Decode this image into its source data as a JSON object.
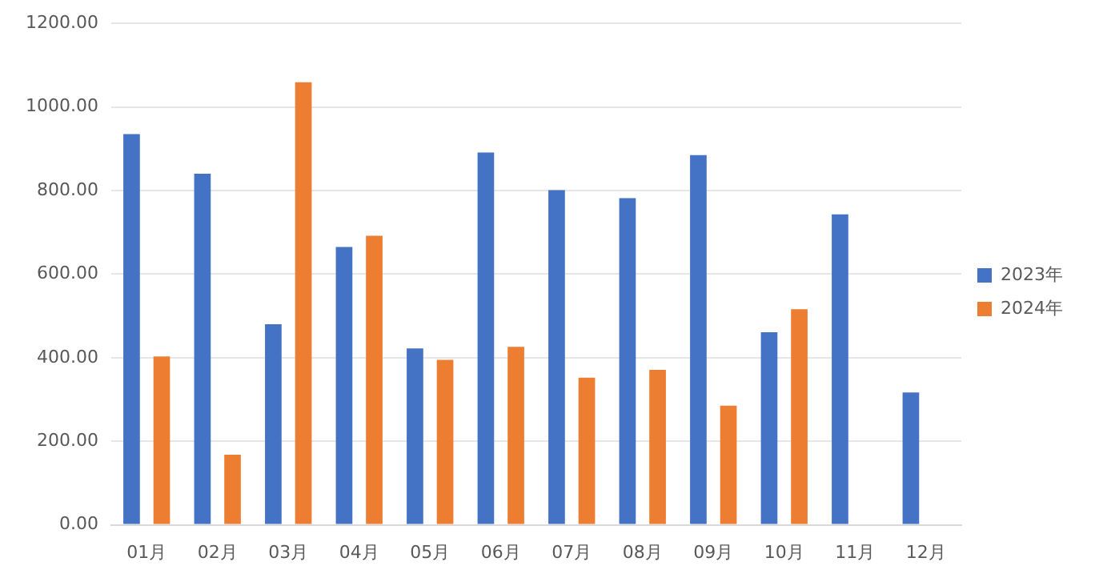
{
  "chart_data": {
    "type": "bar",
    "categories": [
      "01月",
      "02月",
      "03月",
      "04月",
      "05月",
      "06月",
      "07月",
      "08月",
      "09月",
      "10月",
      "11月",
      "12月"
    ],
    "series": [
      {
        "name": "2023年",
        "color": "#4472c4",
        "values": [
          935,
          840,
          480,
          665,
          422,
          891,
          801,
          782,
          885,
          461,
          743,
          317
        ]
      },
      {
        "name": "2024年",
        "color": "#ed7d31",
        "values": [
          403,
          168,
          1059,
          692,
          395,
          426,
          352,
          371,
          285,
          516,
          null,
          null
        ]
      }
    ],
    "ylim": [
      0,
      1200
    ],
    "yticks": [
      {
        "value": 0,
        "label": "0.00"
      },
      {
        "value": 200,
        "label": "200.00"
      },
      {
        "value": 400,
        "label": "400.00"
      },
      {
        "value": 600,
        "label": "600.00"
      },
      {
        "value": 800,
        "label": "800.00"
      },
      {
        "value": 1000,
        "label": "1000.00"
      },
      {
        "value": 1200,
        "label": "1200.00"
      }
    ],
    "grid": "y",
    "legend": "right"
  }
}
